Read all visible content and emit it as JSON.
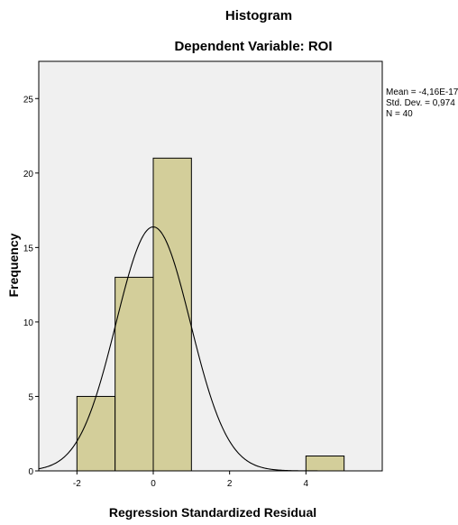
{
  "chart_data": {
    "type": "histogram",
    "title": "Histogram",
    "subtitle": "Dependent Variable: ROI",
    "xlabel": "Regression Standardized Residual",
    "ylabel": "Frequency",
    "xlim": [
      -3,
      6
    ],
    "ylim": [
      0,
      27.5
    ],
    "x_ticks": [
      -2,
      0,
      2,
      4
    ],
    "y_ticks": [
      0,
      5,
      10,
      15,
      20,
      25
    ],
    "bins": [
      {
        "start": -2,
        "end": -1,
        "count": 5
      },
      {
        "start": -1,
        "end": 0,
        "count": 13
      },
      {
        "start": 0,
        "end": 1,
        "count": 21
      },
      {
        "start": 1,
        "end": 2,
        "count": 0
      },
      {
        "start": 2,
        "end": 3,
        "count": 0
      },
      {
        "start": 3,
        "end": 4,
        "count": 0
      },
      {
        "start": 4,
        "end": 5,
        "count": 1
      }
    ],
    "normal_curve": {
      "mean": 0,
      "sd": 0.974,
      "n": 40,
      "bin_width": 1
    },
    "stats": [
      "Mean = -4,16E-17",
      "Std. Dev. = 0,974",
      "N = 40"
    ],
    "bar_color": "#d3ce9a",
    "plot_background": "#f0f0f0",
    "grid": false
  }
}
